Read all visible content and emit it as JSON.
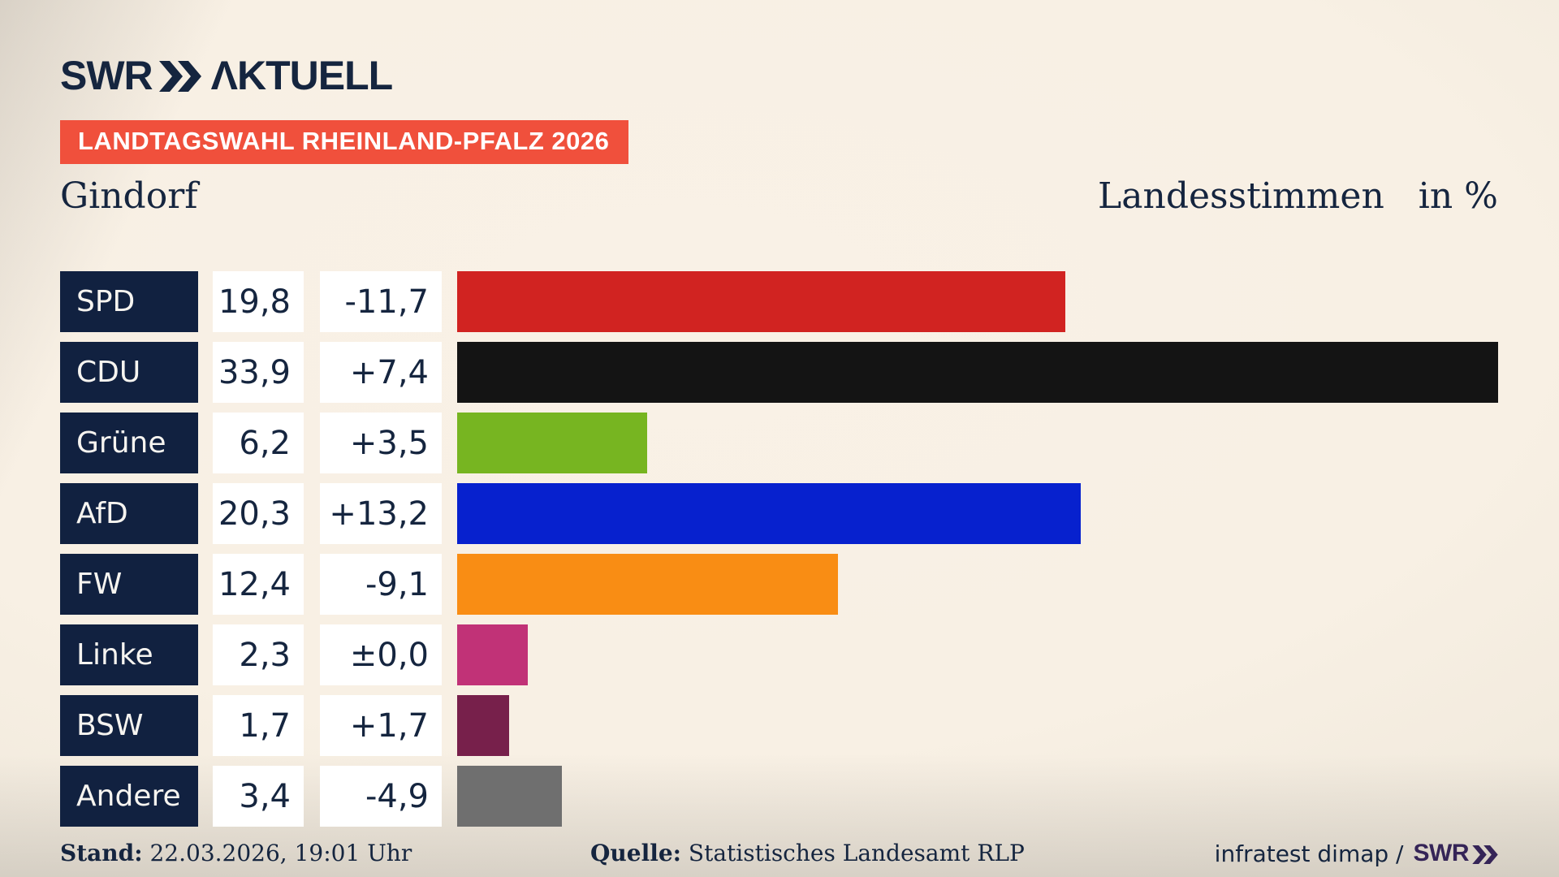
{
  "header": {
    "logo_swr": "SWR",
    "logo_aktuell": "ΛKTUELL",
    "banner": "LANDTAGSWAHL RHEINLAND-PFALZ 2026"
  },
  "title": {
    "municipality": "Gindorf",
    "measure": "Landesstimmen",
    "unit": "in %"
  },
  "chart_data": {
    "type": "bar",
    "orientation": "horizontal",
    "title": "Gindorf — Landesstimmen in %",
    "categories": [
      "SPD",
      "CDU",
      "Grüne",
      "AfD",
      "FW",
      "Linke",
      "BSW",
      "Andere"
    ],
    "values": [
      19.8,
      33.9,
      6.2,
      20.3,
      12.4,
      2.3,
      1.7,
      3.4
    ],
    "value_labels": [
      "19,8",
      "33,9",
      "6,2",
      "20,3",
      "12,4",
      "2,3",
      "1,7",
      "3,4"
    ],
    "change_labels": [
      "-11,7",
      "+7,4",
      "+3,5",
      "+13,2",
      "-9,1",
      "±0,0",
      "+1,7",
      "-4,9"
    ],
    "bar_colors": [
      "#d12321",
      "#141414",
      "#77b521",
      "#0721ce",
      "#f98d14",
      "#c13277",
      "#77204b",
      "#6f6f6f"
    ],
    "xmax": 33.9,
    "xlabel": "in %",
    "grid": false,
    "legend": false
  },
  "colors": {
    "accent_banner": "#f0503c",
    "navy": "#15253f",
    "label_cell_bg": "#112140",
    "value_cell_bg": "#ffffff",
    "footer_swr": "#352457"
  },
  "icons": {
    "logo_chevrons": "double-chevron-right-icon"
  },
  "footer": {
    "stand_label": "Stand:",
    "stand_value": "22.03.2026, 19:01 Uhr",
    "quelle_label": "Quelle:",
    "quelle_value": "Statistisches Landesamt RLP",
    "credit_text": "infratest dimap /",
    "credit_logo": "SWR"
  }
}
